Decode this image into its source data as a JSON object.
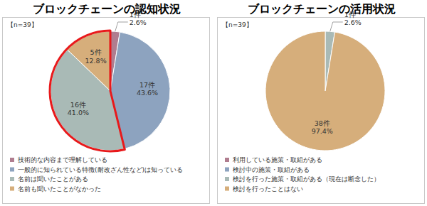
{
  "chart_data": [
    {
      "type": "pie",
      "title": "ブロックチェーンの認知状況",
      "annotation": "【n=39】",
      "categories": [
        "技術的な内容まで理解している",
        "一般的に知られている特徴(耐改ざん性など)は知っている",
        "名前は聞いたことがある",
        "名前も聞いたことがなかった"
      ],
      "values": [
        1,
        17,
        16,
        5
      ],
      "value_labels": [
        "1件",
        "17件",
        "16件",
        "5件"
      ],
      "percent_labels": [
        "2.6%",
        "43.6%",
        "41.0%",
        "12.8%"
      ],
      "colors": [
        "#b07d8f",
        "#8da3bf",
        "#a9bab6",
        "#d6ae7b"
      ],
      "data_labels": true,
      "legend": "bottom"
    },
    {
      "type": "pie",
      "title": "ブロックチェーンの活用状況",
      "annotation": "【n=39】",
      "categories": [
        "利用している施策・取組がある",
        "検討中の施策・取組がある",
        "検討を行った施策・取組がある（現在は断念した）",
        "検討を行ったことはない"
      ],
      "values": [
        0,
        0,
        1,
        38
      ],
      "value_labels": [
        null,
        null,
        "1件",
        "38件"
      ],
      "percent_labels": [
        null,
        null,
        "2.6%",
        "97.4%"
      ],
      "colors": [
        "#b07d8f",
        "#8da3bf",
        "#a9bab6",
        "#d6ae7b"
      ],
      "data_labels": true,
      "legend": "bottom"
    }
  ]
}
